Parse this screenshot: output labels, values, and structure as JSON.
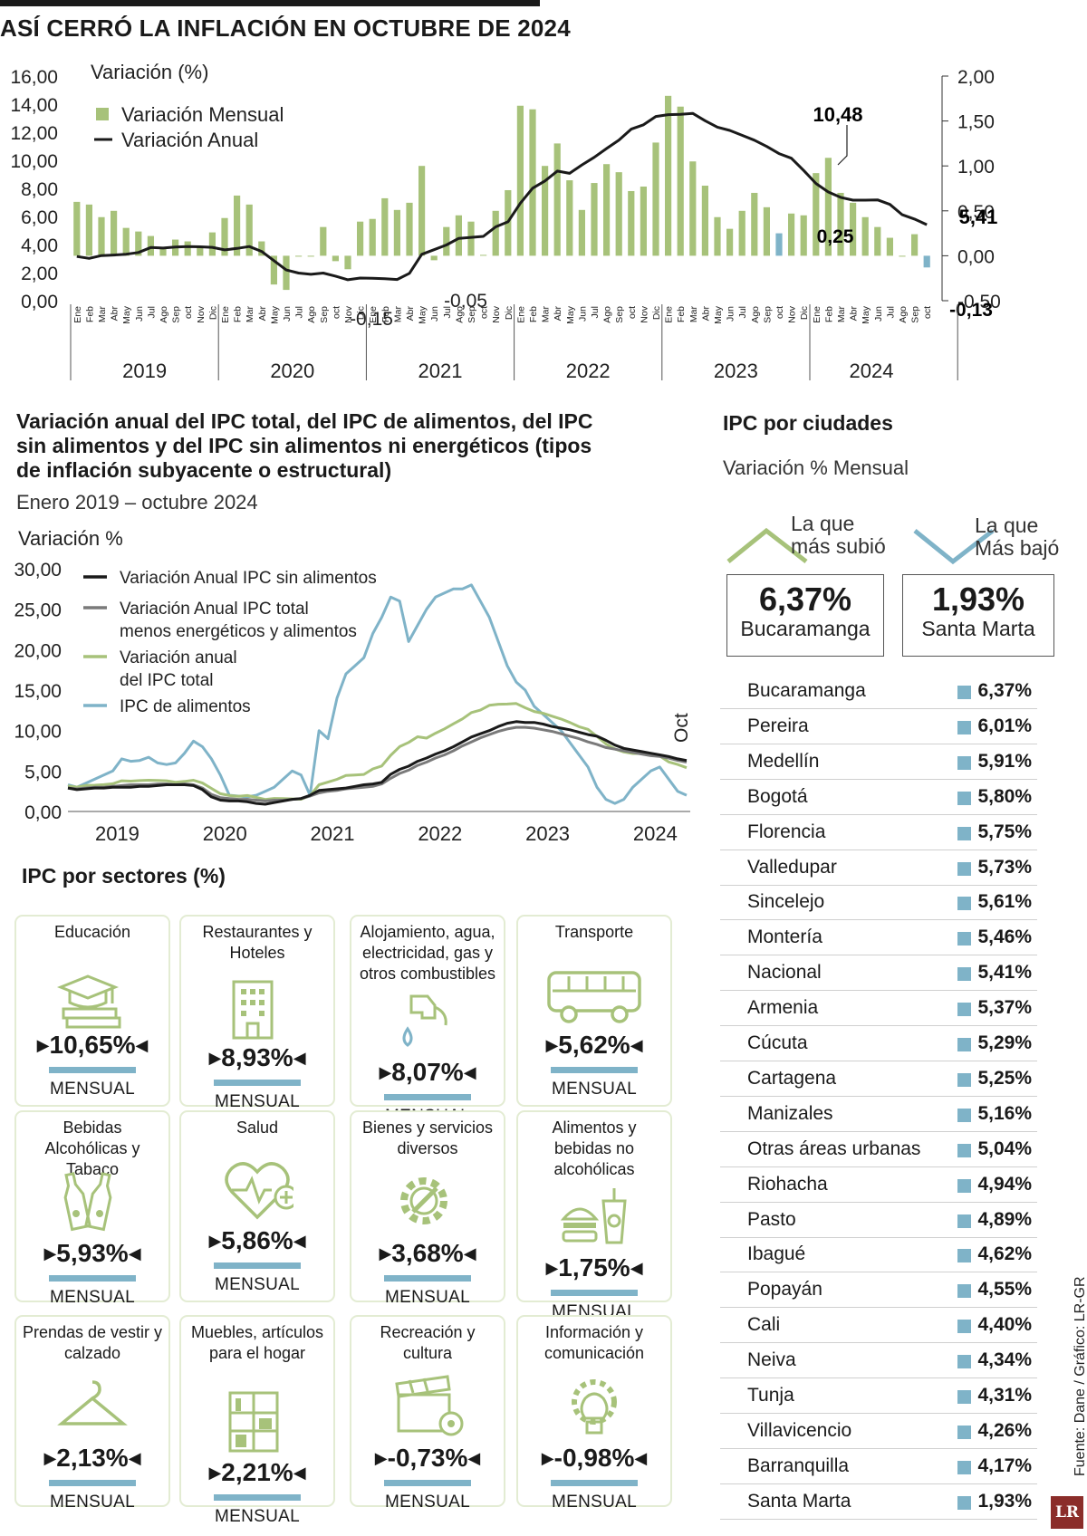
{
  "title": "ASÍ CERRÓ LA INFLACIÓN EN OCTUBRE DE 2024",
  "colors": {
    "green": "#a7c27a",
    "blue": "#7fb3c8",
    "black": "#1a1a1a",
    "gray": "#7a7a7a"
  },
  "chart_data": [
    {
      "type": "bar+line",
      "title": "Variación (%)",
      "legend": [
        "Variación Mensual",
        "Variación Anual"
      ],
      "left_axis": {
        "range": [
          0,
          16
        ],
        "ticks": [
          "16,00",
          "14,00",
          "12,00",
          "10,00",
          "8,00",
          "6,00",
          "4,00",
          "2,00",
          "0,00"
        ],
        "series": "Variación Anual"
      },
      "right_axis": {
        "range": [
          -0.5,
          2
        ],
        "ticks": [
          "2,00",
          "1,50",
          "1,00",
          "0,50",
          "0,00",
          "-0,50"
        ],
        "series": "Variación Mensual"
      },
      "month_labels": [
        "Ene",
        "Feb",
        "Mar",
        "Abr",
        "May",
        "Jun",
        "Jul",
        "Ago",
        "Sep",
        "oct",
        "Nov",
        "Dic"
      ],
      "years": [
        "2019",
        "2020",
        "2021",
        "2022",
        "2023",
        "2024"
      ],
      "monthly": [
        0.6,
        0.57,
        0.43,
        0.5,
        0.31,
        0.27,
        0.22,
        0.09,
        0.18,
        0.16,
        0.1,
        0.26,
        0.42,
        0.67,
        0.57,
        0.16,
        -0.32,
        -0.38,
        0.0,
        -0.01,
        0.32,
        -0.06,
        -0.15,
        0.38,
        0.41,
        0.64,
        0.51,
        0.59,
        1.0,
        -0.05,
        0.32,
        0.45,
        0.38,
        0.01,
        0.5,
        0.73,
        1.67,
        1.63,
        1.0,
        1.25,
        0.84,
        0.51,
        0.81,
        1.02,
        0.93,
        0.72,
        0.77,
        1.26,
        1.78,
        1.66,
        1.05,
        0.78,
        0.43,
        0.3,
        0.5,
        0.7,
        0.54,
        0.25,
        0.47,
        0.45,
        0.92,
        1.09,
        0.7,
        0.59,
        0.43,
        0.32,
        0.2,
        0.0,
        0.24,
        -0.13
      ],
      "annual": [
        3.15,
        3.01,
        3.21,
        3.25,
        3.31,
        3.43,
        3.79,
        3.75,
        3.82,
        3.86,
        3.84,
        3.8,
        3.62,
        3.72,
        3.86,
        3.51,
        2.85,
        2.19,
        1.97,
        1.88,
        1.97,
        1.75,
        1.49,
        1.61,
        1.6,
        1.56,
        1.51,
        1.95,
        3.3,
        3.63,
        3.97,
        4.44,
        4.51,
        4.58,
        5.26,
        5.62,
        6.94,
        8.01,
        8.53,
        9.23,
        9.07,
        9.67,
        10.21,
        10.84,
        11.44,
        12.22,
        12.53,
        13.12,
        13.25,
        13.28,
        13.34,
        12.82,
        12.36,
        12.13,
        11.78,
        11.43,
        10.99,
        10.48,
        10.15,
        9.28,
        8.35,
        7.74,
        7.36,
        7.16,
        7.16,
        7.18,
        6.86,
        6.12,
        5.81,
        5.41
      ],
      "annotations": [
        "10,48",
        "0,25",
        "5,41",
        "-0,13",
        "-0,15",
        "-0,05"
      ]
    },
    {
      "type": "line",
      "title": "Variación anual del IPC total, del IPC de alimentos, del IPC sin alimentos y del IPC sin alimentos ni energéticos (tipos de inflación subyacente o estructural)",
      "subtitle": "Enero 2019 – octubre 2024",
      "ylabel": "Variación %",
      "ylim": [
        0,
        30
      ],
      "ticks": [
        "30,00",
        "25,00",
        "20,00",
        "15,00",
        "10,00",
        "5,00",
        "0,00"
      ],
      "x_labels": [
        "2019",
        "2020",
        "2021",
        "2022",
        "2023",
        "2024"
      ],
      "end_label": "Oct",
      "series": [
        {
          "name": "Variación Anual IPC sin alimentos",
          "color": "#1a1a1a",
          "values": [
            2.9,
            2.7,
            2.8,
            2.9,
            2.9,
            3.0,
            3.0,
            3.0,
            3.1,
            3.1,
            3.2,
            3.3,
            3.3,
            3.3,
            3.2,
            2.7,
            1.8,
            1.4,
            1.3,
            1.3,
            1.2,
            1.0,
            0.9,
            1.1,
            1.3,
            1.5,
            1.6,
            2.0,
            2.6,
            2.7,
            2.8,
            2.9,
            3.1,
            3.3,
            3.4,
            3.6,
            4.6,
            5.2,
            5.6,
            6.2,
            6.6,
            7.1,
            7.5,
            8.0,
            8.6,
            9.2,
            9.6,
            10.0,
            10.5,
            10.9,
            11.1,
            11.0,
            11.0,
            10.8,
            10.5,
            10.3,
            10.1,
            9.8,
            9.5,
            9.3,
            8.8,
            8.2,
            7.8,
            7.6,
            7.4,
            7.2,
            7.0,
            6.8,
            6.5,
            6.3
          ]
        },
        {
          "name": "Variación Anual IPC total menos energéticos y alimentos",
          "color": "#7a7a7a",
          "values": [
            2.9,
            2.8,
            2.9,
            3.0,
            3.0,
            3.1,
            3.2,
            3.3,
            3.3,
            3.3,
            3.4,
            3.4,
            3.3,
            3.4,
            3.3,
            2.9,
            2.1,
            1.7,
            1.6,
            1.5,
            1.5,
            1.4,
            1.3,
            1.4,
            1.4,
            1.5,
            1.6,
            1.9,
            2.3,
            2.5,
            2.6,
            2.8,
            2.9,
            3.0,
            3.1,
            3.4,
            4.1,
            4.7,
            5.1,
            5.7,
            6.1,
            6.6,
            7.0,
            7.5,
            8.1,
            8.6,
            9.1,
            9.5,
            9.9,
            10.2,
            10.4,
            10.4,
            10.3,
            10.1,
            9.9,
            9.6,
            9.3,
            9.0,
            8.6,
            8.3,
            7.9,
            7.7,
            7.5,
            7.3,
            7.1,
            6.9,
            6.8,
            6.6,
            6.3,
            6.1
          ]
        },
        {
          "name": "Variación anual del IPC total",
          "color": "#a7c27a",
          "values": [
            3.15,
            3.01,
            3.21,
            3.25,
            3.31,
            3.43,
            3.79,
            3.75,
            3.82,
            3.86,
            3.84,
            3.8,
            3.62,
            3.72,
            3.86,
            3.51,
            2.85,
            2.19,
            1.97,
            1.88,
            1.97,
            1.75,
            1.49,
            1.61,
            1.6,
            1.56,
            1.51,
            1.95,
            3.3,
            3.63,
            3.97,
            4.44,
            4.51,
            4.58,
            5.26,
            5.62,
            6.94,
            8.01,
            8.53,
            9.23,
            9.07,
            9.67,
            10.21,
            10.84,
            11.44,
            12.22,
            12.53,
            13.12,
            13.25,
            13.28,
            13.34,
            12.82,
            12.36,
            12.13,
            11.78,
            11.43,
            10.99,
            10.48,
            10.15,
            9.28,
            8.35,
            7.74,
            7.36,
            7.16,
            7.16,
            7.18,
            6.86,
            6.12,
            5.81,
            5.41
          ]
        },
        {
          "name": "IPC de alimentos",
          "color": "#7fb3c8",
          "values": [
            3.3,
            3.0,
            3.5,
            4.0,
            4.5,
            5.0,
            6.5,
            6.2,
            6.3,
            6.7,
            6.0,
            5.8,
            6.0,
            7.2,
            8.7,
            8.0,
            6.5,
            4.5,
            2.0,
            1.9,
            1.8,
            2.0,
            2.5,
            3.0,
            4.0,
            5.0,
            4.5,
            2.0,
            10.0,
            9.0,
            14.0,
            17.0,
            18.0,
            19.0,
            22.0,
            24.0,
            26.5,
            26.0,
            21.0,
            23.0,
            25.0,
            26.5,
            27.0,
            27.5,
            27.5,
            28.0,
            26.0,
            24.0,
            21.0,
            18.0,
            16.0,
            15.0,
            13.0,
            12.0,
            11.0,
            10.0,
            8.5,
            7.0,
            5.5,
            3.0,
            1.5,
            1.0,
            1.5,
            3.0,
            4.0,
            5.0,
            5.5,
            4.0,
            2.5,
            2.0
          ]
        }
      ]
    }
  ],
  "sectors": {
    "title": "IPC por sectores (%)",
    "unit": "MENSUAL",
    "items": [
      {
        "name": "Educación",
        "value": "10,65%",
        "icon": "education-icon"
      },
      {
        "name": "Restaurantes y Hoteles",
        "value": "8,93%",
        "icon": "hotel-icon"
      },
      {
        "name": "Alojamiento, agua, electricidad, gas y otros combustibles",
        "value": "8,07%",
        "icon": "fuel-pump-icon"
      },
      {
        "name": "Transporte",
        "value": "5,62%",
        "icon": "bus-icon"
      },
      {
        "name": "Bebidas Alcohólicas y Tabaco",
        "value": "5,93%",
        "icon": "beer-bottles-icon"
      },
      {
        "name": "Salud",
        "value": "5,86%",
        "icon": "heart-health-icon"
      },
      {
        "name": "Bienes y servicios diversos",
        "value": "3,68%",
        "icon": "gear-wrench-icon"
      },
      {
        "name": "Alimentos y bebidas no alcohólicas",
        "value": "1,75%",
        "icon": "burger-drink-icon"
      },
      {
        "name": "Prendas de vestir y calzado",
        "value": "2,13%",
        "icon": "hanger-icon"
      },
      {
        "name": "Muebles, artículos para el hogar",
        "value": "2,21%",
        "icon": "shelf-icon"
      },
      {
        "name": "Recreación y cultura",
        "value": "-0,73%",
        "icon": "clapperboard-icon"
      },
      {
        "name": "Información y comunicación",
        "value": "-0,98%",
        "icon": "lightbulb-gear-icon"
      }
    ]
  },
  "cities": {
    "title": "IPC por ciudades",
    "subtitle": "Variación % Mensual",
    "highest_label_1": "La que",
    "highest_label_2": "más subió",
    "lowest_label_1": "La que",
    "lowest_label_2": "Más bajó",
    "highest": {
      "value": "6,37%",
      "city": "Bucaramanga"
    },
    "lowest": {
      "value": "1,93%",
      "city": "Santa Marta"
    },
    "list": [
      {
        "name": "Bucaramanga",
        "value": "6,37%"
      },
      {
        "name": "Pereira",
        "value": "6,01%"
      },
      {
        "name": "Medellín",
        "value": "5,91%"
      },
      {
        "name": "Bogotá",
        "value": "5,80%"
      },
      {
        "name": "Florencia",
        "value": "5,75%"
      },
      {
        "name": "Valledupar",
        "value": "5,73%"
      },
      {
        "name": "Sincelejo",
        "value": "5,61%"
      },
      {
        "name": "Montería",
        "value": "5,46%"
      },
      {
        "name": "Nacional",
        "value": "5,41%"
      },
      {
        "name": "Armenia",
        "value": "5,37%"
      },
      {
        "name": "Cúcuta",
        "value": "5,29%"
      },
      {
        "name": "Cartagena",
        "value": "5,25%"
      },
      {
        "name": "Manizales",
        "value": "5,16%"
      },
      {
        "name": "Otras áreas urbanas",
        "value": "5,04%"
      },
      {
        "name": "Riohacha",
        "value": "4,94%"
      },
      {
        "name": "Pasto",
        "value": "4,89%"
      },
      {
        "name": "Ibagué",
        "value": "4,62%"
      },
      {
        "name": "Popayán",
        "value": "4,55%"
      },
      {
        "name": "Cali",
        "value": "4,40%"
      },
      {
        "name": "Neiva",
        "value": "4,34%"
      },
      {
        "name": "Tunja",
        "value": "4,31%"
      },
      {
        "name": "Villavicencio",
        "value": "4,26%"
      },
      {
        "name": "Barranquilla",
        "value": "4,17%"
      },
      {
        "name": "Santa Marta",
        "value": "1,93%"
      }
    ]
  },
  "source": "Fuente: Dane / Gráfico: LR-GR",
  "logo": "LR"
}
